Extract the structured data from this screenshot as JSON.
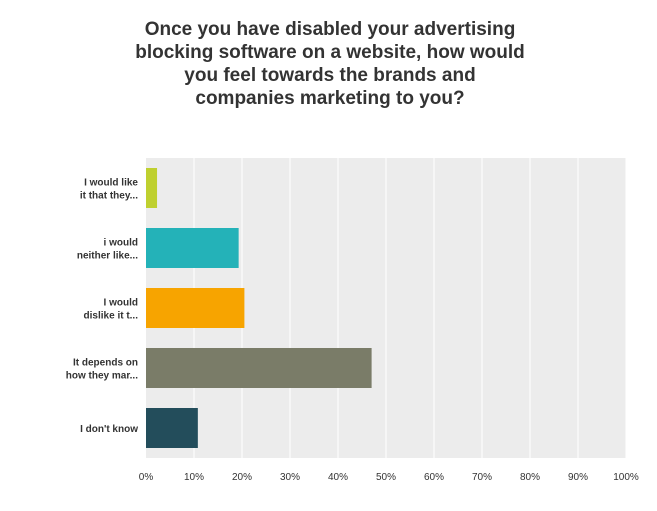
{
  "chart_data": {
    "type": "bar",
    "orientation": "horizontal",
    "title_lines": [
      "Once you have disabled your advertising",
      "blocking software on a website, how would",
      "you feel towards the brands and",
      "companies marketing to you?"
    ],
    "categories": [
      [
        "I would like",
        "it that they..."
      ],
      [
        "i would",
        "neither like..."
      ],
      [
        "I would",
        "dislike it t..."
      ],
      [
        "It depends on",
        "how they mar..."
      ],
      [
        "I don't know"
      ]
    ],
    "values": [
      2.3,
      19.3,
      20.5,
      47.0,
      10.8
    ],
    "colors": [
      "#bfd02f",
      "#24b2b8",
      "#f7a400",
      "#7a7c68",
      "#234d5b"
    ],
    "xlim": [
      0,
      100
    ],
    "x_ticks": [
      "0%",
      "10%",
      "20%",
      "30%",
      "40%",
      "50%",
      "60%",
      "70%",
      "80%",
      "90%",
      "100%"
    ],
    "grid": true,
    "plot_background": "#ececec",
    "grid_color": "#ffffff"
  }
}
